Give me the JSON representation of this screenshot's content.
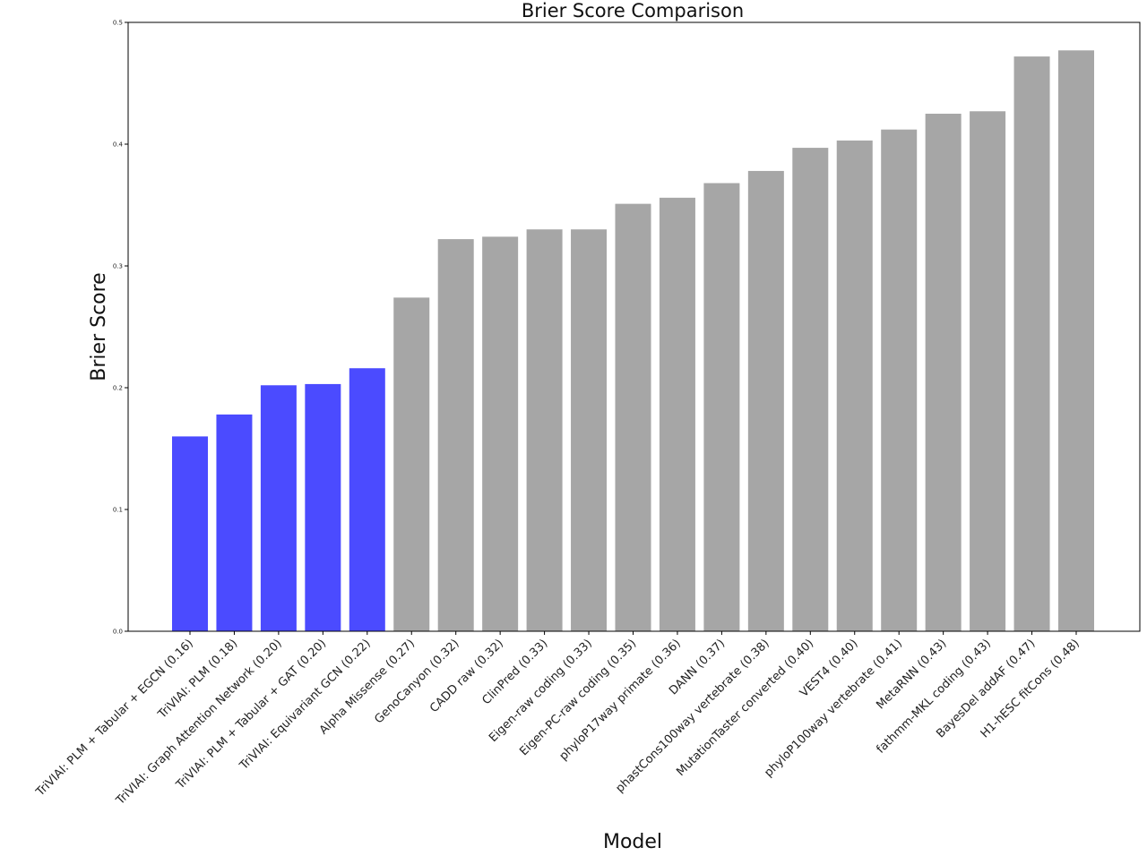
{
  "chart_data": {
    "type": "bar",
    "title": "Brier Score Comparison",
    "xlabel": "Model",
    "ylabel": "Brier Score",
    "ylim": [
      0,
      0.5
    ],
    "yticks": [
      "0.0",
      "0.1",
      "0.2",
      "0.3",
      "0.4",
      "0.5"
    ],
    "grid": false,
    "categories": [
      "TriVIAI: PLM + Tabular + EGCN (0.16)",
      "TriVIAI: PLM (0.18)",
      "TriVIAI: Graph Attention Network (0.20)",
      "TriVIAI: PLM + Tabular + GAT (0.20)",
      "TriVIAI: Equivariant GCN (0.22)",
      "Alpha Missense (0.27)",
      "GenoCanyon (0.32)",
      "CADD raw (0.32)",
      "ClinPred (0.33)",
      "Eigen-raw coding (0.33)",
      "Eigen-PC-raw coding (0.35)",
      "phyloP17way primate (0.36)",
      "DANN (0.37)",
      "phastCons100way vertebrate (0.38)",
      "MutationTaster converted (0.40)",
      "VEST4 (0.40)",
      "phyloP100way vertebrate (0.41)",
      "MetaRNN (0.43)",
      "fathmm-MKL coding (0.43)",
      "BayesDel addAF (0.47)",
      "H1-hESC fitCons (0.48)"
    ],
    "values": [
      0.16,
      0.178,
      0.202,
      0.203,
      0.216,
      0.274,
      0.322,
      0.324,
      0.33,
      0.33,
      0.351,
      0.356,
      0.368,
      0.378,
      0.397,
      0.403,
      0.412,
      0.425,
      0.427,
      0.472,
      0.477
    ],
    "colors": [
      "#4b4bff",
      "#4b4bff",
      "#4b4bff",
      "#4b4bff",
      "#4b4bff",
      "#a6a6a6",
      "#a6a6a6",
      "#a6a6a6",
      "#a6a6a6",
      "#a6a6a6",
      "#a6a6a6",
      "#a6a6a6",
      "#a6a6a6",
      "#a6a6a6",
      "#a6a6a6",
      "#a6a6a6",
      "#a6a6a6",
      "#a6a6a6",
      "#a6a6a6",
      "#a6a6a6",
      "#a6a6a6"
    ]
  }
}
